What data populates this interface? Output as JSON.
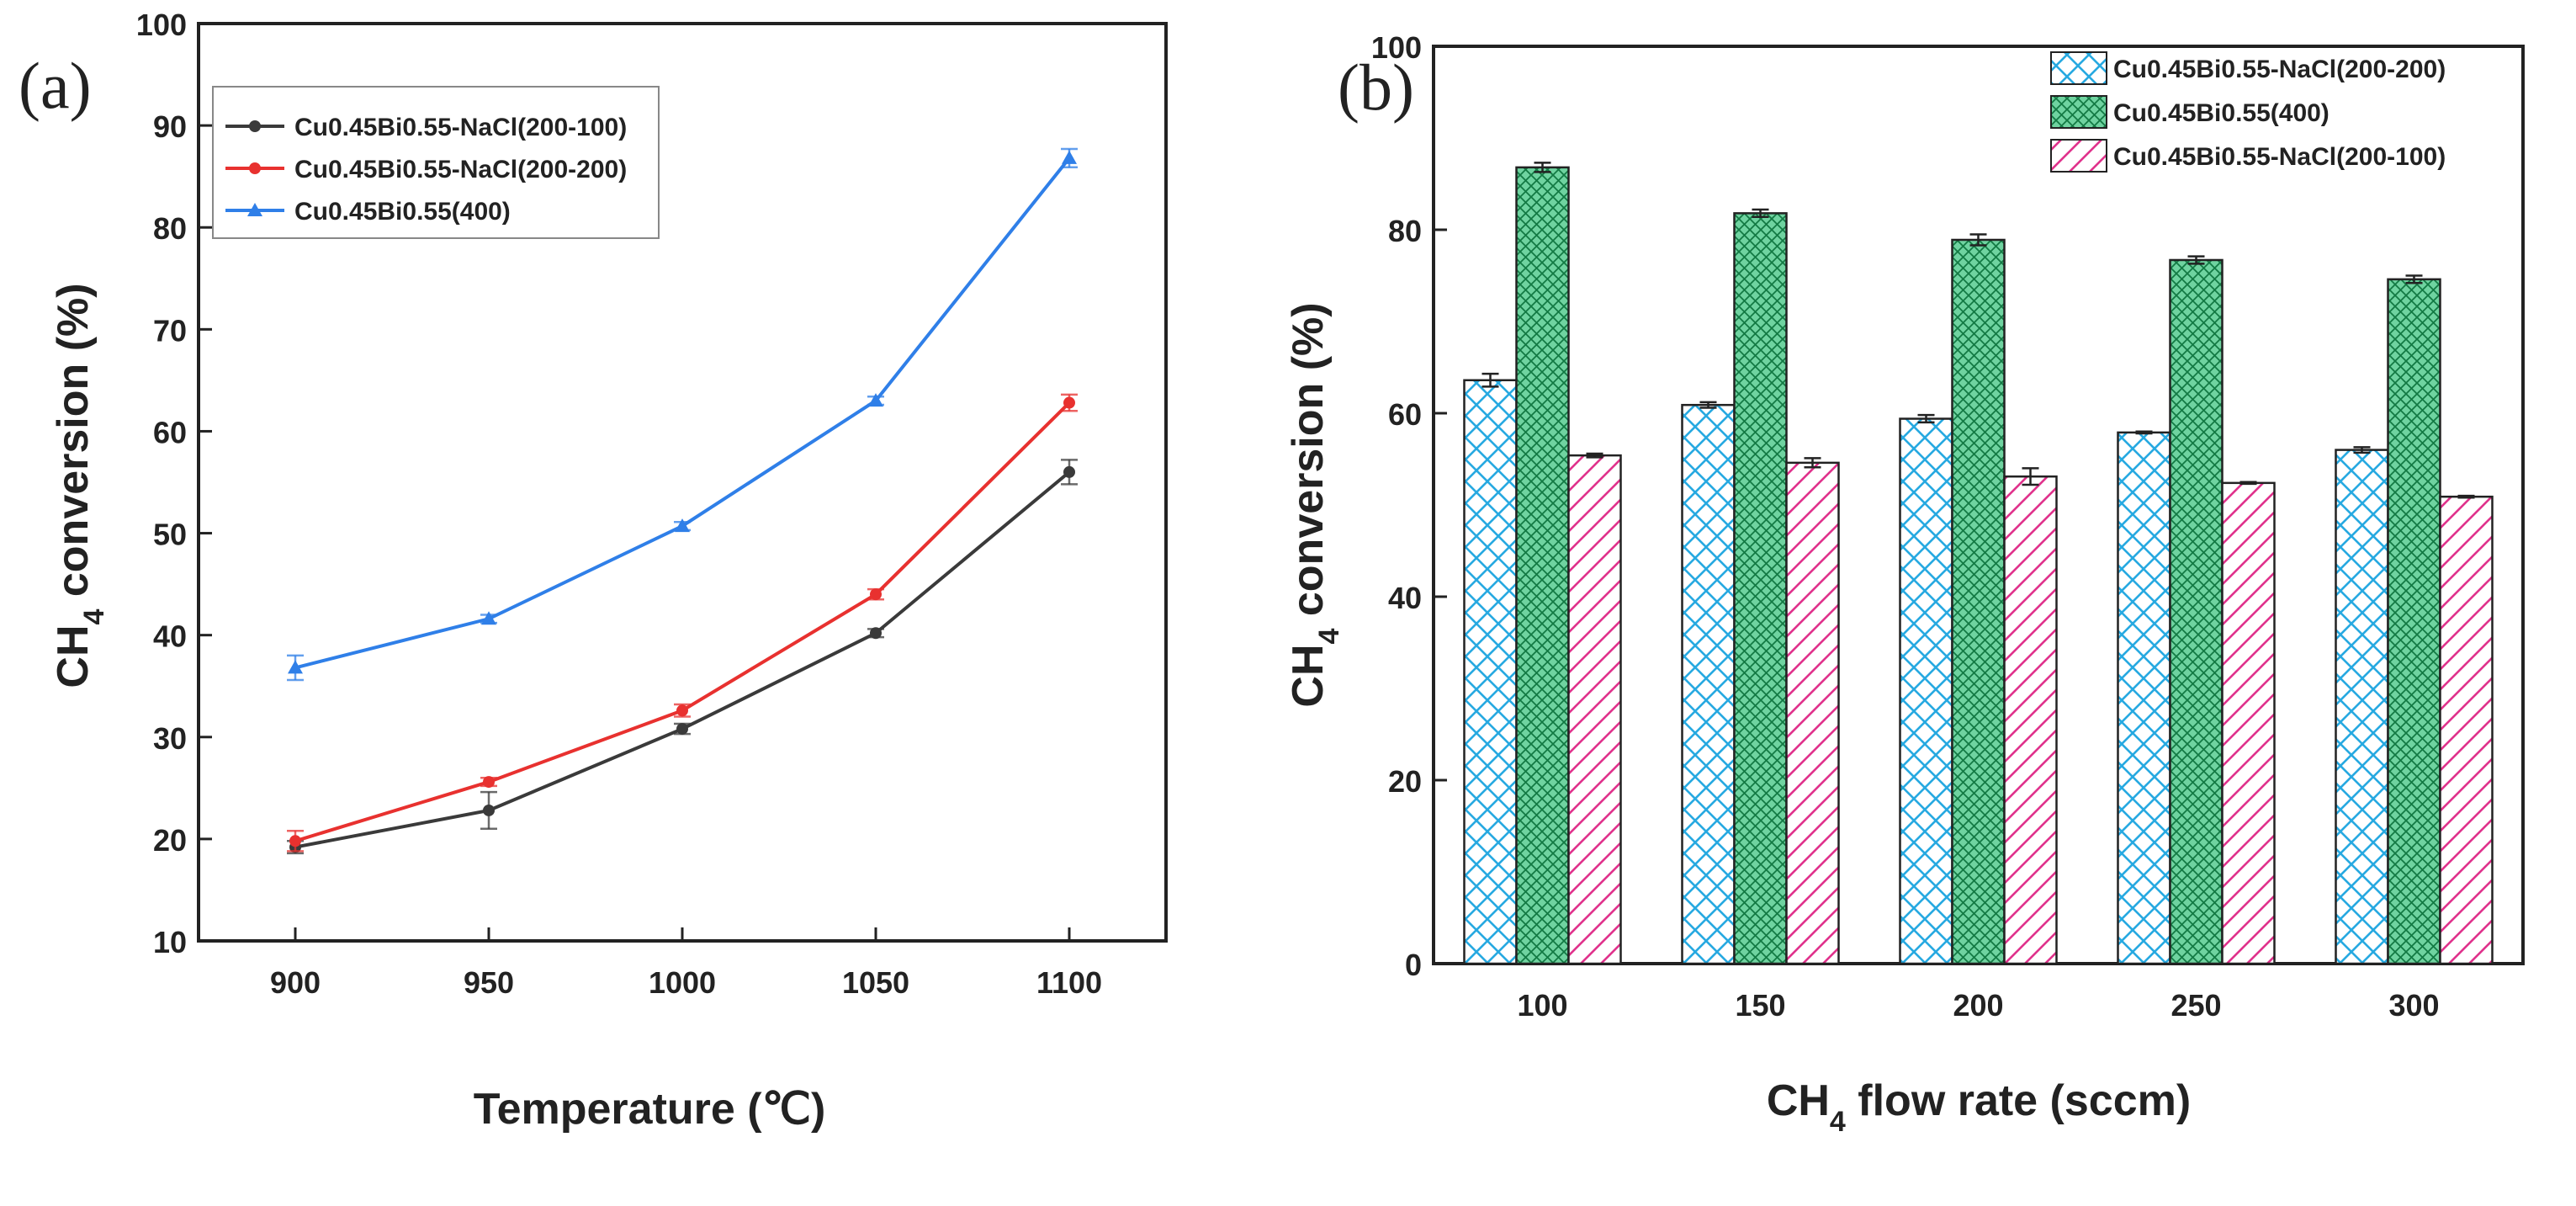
{
  "chart_data": [
    {
      "type": "line",
      "panel_label": "(a)",
      "xlabel": "Temperature (℃)",
      "ylabel_main": "CH",
      "ylabel_sub": "4",
      "ylabel_rest": " conversion (%)",
      "x": [
        900,
        950,
        1000,
        1050,
        1100
      ],
      "xticks": [
        "900",
        "950",
        "1000",
        "1050",
        "1100"
      ],
      "xlim": [
        875,
        1125
      ],
      "ylim": [
        10,
        100
      ],
      "yticks": [
        "10",
        "20",
        "30",
        "40",
        "50",
        "60",
        "70",
        "80",
        "90",
        "100"
      ],
      "legend_position": "top-left",
      "grid": false,
      "series": [
        {
          "name": "Cu0.45Bi0.55-NaCl(200-100)",
          "color": "#3a3a3a",
          "marker": "circle",
          "values": [
            19.2,
            22.8,
            30.8,
            40.2,
            56.0
          ],
          "errors": [
            0.6,
            1.8,
            0.5,
            0.4,
            1.2
          ]
        },
        {
          "name": "Cu0.45Bi0.55-NaCl(200-200)",
          "color": "#e8312f",
          "marker": "circle",
          "values": [
            19.8,
            25.6,
            32.6,
            44.0,
            62.8
          ],
          "errors": [
            1.0,
            0.4,
            0.6,
            0.5,
            0.8
          ]
        },
        {
          "name": "Cu0.45Bi0.55(400)",
          "color": "#2f7fe8",
          "marker": "triangle",
          "values": [
            36.8,
            41.6,
            50.7,
            63.0,
            86.8
          ],
          "errors": [
            1.2,
            0.4,
            0.4,
            0.4,
            0.9
          ]
        }
      ]
    },
    {
      "type": "bar",
      "panel_label": "(b)",
      "xlabel_main": "CH",
      "xlabel_sub": "4",
      "xlabel_rest": " flow rate (sccm)",
      "ylabel_main": "CH",
      "ylabel_sub": "4",
      "ylabel_rest": " conversion (%)",
      "categories": [
        "100",
        "150",
        "200",
        "250",
        "300"
      ],
      "ylim": [
        0,
        100
      ],
      "yticks": [
        "0",
        "20",
        "40",
        "60",
        "80",
        "100"
      ],
      "legend_position": "top-right",
      "grid": false,
      "series": [
        {
          "name": "Cu0.45Bi0.55-NaCl(200-200)",
          "color": "#27a9e1",
          "pattern": "crosshatch",
          "values": [
            63.6,
            60.9,
            59.4,
            57.9,
            56.0
          ],
          "errors": [
            0.7,
            0.3,
            0.4,
            0.1,
            0.3
          ]
        },
        {
          "name": "Cu0.45Bi0.55(400)",
          "color": "#1e9e5a",
          "pattern": "dense-crosshatch",
          "values": [
            86.8,
            81.8,
            78.9,
            76.7,
            74.6
          ],
          "errors": [
            0.5,
            0.4,
            0.6,
            0.4,
            0.4
          ]
        },
        {
          "name": "Cu0.45Bi0.55-NaCl(200-100)",
          "color": "#e0328c",
          "pattern": "diagonal",
          "values": [
            55.4,
            54.6,
            53.1,
            52.4,
            50.9
          ],
          "errors": [
            0.2,
            0.5,
            0.9,
            0.1,
            0.1
          ]
        }
      ]
    }
  ]
}
